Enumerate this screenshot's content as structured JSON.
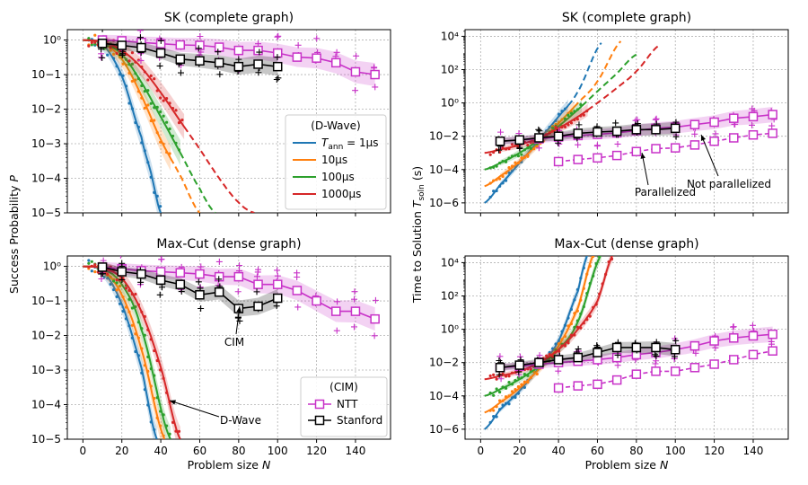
{
  "colors": {
    "t1": "#1f77b4",
    "t10": "#ff7f0e",
    "t100": "#2ca02c",
    "t1000": "#d62728",
    "ntt": "#c832c8",
    "stanford": "#000000",
    "grid": "#b0b0b0"
  },
  "shared": {
    "xlabel": "Problem size N",
    "left_ylabel": "Success Probability P",
    "right_ylabel": "Time to Solution T_soln (s)",
    "x_ticks": [
      "0",
      "20",
      "40",
      "60",
      "80",
      "100",
      "120",
      "140"
    ],
    "left_y_ticks": [
      "10−5",
      "10−4",
      "10−3",
      "10−2",
      "10−1",
      "10⁰"
    ],
    "right_y_ticks": [
      "10−6",
      "10−4",
      "10−2",
      "10⁰",
      "10²",
      "10⁴"
    ]
  },
  "legend_dwave": {
    "title": "(D-Wave)",
    "entries": [
      "T_ann = 1μs",
      "10μs",
      "100μs",
      "1000μs"
    ]
  },
  "legend_cim": {
    "title": "(CIM)",
    "entries": [
      "NTT",
      "Stanford"
    ]
  },
  "annotations": {
    "parallelized": "Parallelized",
    "not_parallelized": "Not parallelized",
    "cim": "CIM",
    "dwave": "D-Wave"
  },
  "chart_data": [
    {
      "id": "sk_p",
      "type": "line",
      "title": "SK (complete graph)",
      "xlabel": "",
      "ylabel": "Success Probability P",
      "yscale": "log",
      "xlim": [
        -8,
        158
      ],
      "ylim_exp": [
        -5,
        0.3
      ],
      "dwave_fits": [
        {
          "name": "T_ann = 1μs",
          "color_key": "t1",
          "solid_end": 40,
          "dash_end": 40,
          "x": [
            0,
            10,
            20,
            30,
            35,
            40
          ],
          "y": [
            1,
            0.75,
            0.09,
            0.0016,
            0.00014,
            1e-05
          ]
        },
        {
          "name": "10μs",
          "color_key": "t10",
          "solid_end": 45,
          "dash_end": 60,
          "x": [
            0,
            10,
            20,
            30,
            40,
            50,
            60
          ],
          "y": [
            1,
            0.82,
            0.28,
            0.025,
            0.0013,
            0.00012,
            1e-05
          ]
        },
        {
          "name": "100μs",
          "color_key": "t100",
          "solid_end": 50,
          "dash_end": 68,
          "x": [
            0,
            10,
            20,
            30,
            40,
            50,
            60,
            68
          ],
          "y": [
            1,
            0.85,
            0.38,
            0.06,
            0.006,
            0.00055,
            5e-05,
            1e-05
          ]
        },
        {
          "name": "1000μs",
          "color_key": "t1000",
          "solid_end": 52,
          "dash_end": 88,
          "x": [
            0,
            10,
            20,
            30,
            40,
            50,
            60,
            70,
            80,
            88
          ],
          "y": [
            1,
            0.88,
            0.5,
            0.16,
            0.03,
            0.0045,
            0.0007,
            0.0001,
            2e-05,
            1e-05
          ]
        }
      ],
      "ntt": {
        "x": [
          10,
          20,
          30,
          40,
          50,
          60,
          70,
          80,
          90,
          100,
          110,
          120,
          130,
          140,
          150
        ],
        "y": [
          1.0,
          0.95,
          0.85,
          0.78,
          0.72,
          0.7,
          0.62,
          0.5,
          0.5,
          0.42,
          0.32,
          0.3,
          0.22,
          0.12,
          0.1
        ]
      },
      "stanford": {
        "x": [
          10,
          20,
          30,
          40,
          50,
          60,
          70,
          80,
          90,
          100
        ],
        "y": [
          0.8,
          0.7,
          0.6,
          0.42,
          0.28,
          0.25,
          0.22,
          0.17,
          0.2,
          0.17
        ]
      }
    },
    {
      "id": "sk_t",
      "type": "line",
      "title": "SK (complete graph)",
      "xlabel": "Problem size N",
      "ylabel": "Time to Solution T_soln (s)",
      "yscale": "log",
      "xlim": [
        -8,
        158
      ],
      "ylim_exp": [
        -6.6,
        4.4
      ],
      "dwave_fits": [
        {
          "name": "T_ann = 1μs",
          "color_key": "t1",
          "solid_end": 45,
          "dash_end": 62,
          "x": [
            2,
            10,
            20,
            30,
            40,
            50,
            62
          ],
          "y": [
            1e-06,
            1.2e-05,
            0.00025,
            0.006,
            0.15,
            5,
            4000
          ]
        },
        {
          "name": "10μs",
          "color_key": "t10",
          "solid_end": 48,
          "dash_end": 72,
          "x": [
            2,
            10,
            20,
            30,
            40,
            50,
            60,
            72
          ],
          "y": [
            1e-05,
            4e-05,
            0.0003,
            0.004,
            0.06,
            1,
            20,
            5000
          ]
        },
        {
          "name": "100μs",
          "color_key": "t100",
          "solid_end": 52,
          "dash_end": 80,
          "x": [
            2,
            10,
            20,
            30,
            40,
            50,
            60,
            70,
            80
          ],
          "y": [
            0.0001,
            0.00025,
            0.001,
            0.006,
            0.04,
            0.4,
            5,
            60,
            800
          ]
        },
        {
          "name": "1000μs",
          "color_key": "t1000",
          "solid_end": 55,
          "dash_end": 92,
          "x": [
            2,
            10,
            20,
            30,
            40,
            50,
            60,
            70,
            80,
            92
          ],
          "y": [
            0.001,
            0.0016,
            0.003,
            0.008,
            0.03,
            0.15,
            1,
            8,
            80,
            3000
          ]
        }
      ],
      "ntt_parallel": {
        "x": [
          40,
          50,
          60,
          70,
          80,
          90,
          100,
          110,
          120,
          130,
          140,
          150
        ],
        "y": [
          0.0003,
          0.0004,
          0.0005,
          0.0007,
          0.0012,
          0.0018,
          0.002,
          0.003,
          0.005,
          0.008,
          0.012,
          0.015
        ]
      },
      "ntt": {
        "x": [
          10,
          20,
          30,
          40,
          50,
          60,
          70,
          80,
          90,
          100,
          110,
          120,
          130,
          140,
          150
        ],
        "y": [
          0.005,
          0.006,
          0.007,
          0.009,
          0.011,
          0.013,
          0.016,
          0.022,
          0.03,
          0.035,
          0.05,
          0.07,
          0.12,
          0.15,
          0.2
        ]
      },
      "stanford": {
        "x": [
          10,
          20,
          30,
          40,
          50,
          60,
          70,
          80,
          90,
          100
        ],
        "y": [
          0.005,
          0.006,
          0.008,
          0.01,
          0.015,
          0.018,
          0.02,
          0.025,
          0.025,
          0.03
        ]
      }
    },
    {
      "id": "mc_p",
      "type": "line",
      "title": "Max-Cut (dense graph)",
      "xlabel": "Problem size N",
      "ylabel": "Success Probability P",
      "yscale": "log",
      "xlim": [
        -8,
        158
      ],
      "ylim_exp": [
        -5,
        0.3
      ],
      "dwave_fits": [
        {
          "name": "T_ann = 1μs",
          "color_key": "t1",
          "solid_end": 38,
          "dash_end": 38,
          "x": [
            0,
            10,
            20,
            30,
            38
          ],
          "y": [
            1,
            0.75,
            0.08,
            0.0012,
            1e-05
          ]
        },
        {
          "name": "10μs",
          "color_key": "t10",
          "solid_end": 42,
          "dash_end": 42,
          "x": [
            0,
            10,
            20,
            30,
            42
          ],
          "y": [
            1,
            0.8,
            0.15,
            0.004,
            1e-05
          ]
        },
        {
          "name": "100μs",
          "color_key": "t100",
          "solid_end": 45,
          "dash_end": 45,
          "x": [
            0,
            10,
            20,
            30,
            45
          ],
          "y": [
            1,
            0.85,
            0.3,
            0.015,
            1e-05
          ]
        },
        {
          "name": "1000μs",
          "color_key": "t1000",
          "solid_end": 50,
          "dash_end": 50,
          "x": [
            0,
            10,
            20,
            30,
            40,
            50
          ],
          "y": [
            1,
            0.88,
            0.45,
            0.05,
            0.0012,
            1e-05
          ]
        }
      ],
      "ntt": {
        "x": [
          10,
          20,
          30,
          40,
          50,
          60,
          70,
          80,
          90,
          100,
          110,
          120,
          130,
          140,
          150
        ],
        "y": [
          0.95,
          0.85,
          0.75,
          0.7,
          0.65,
          0.6,
          0.5,
          0.5,
          0.3,
          0.3,
          0.2,
          0.1,
          0.05,
          0.05,
          0.03
        ]
      },
      "stanford": {
        "x": [
          10,
          20,
          30,
          40,
          50,
          60,
          70,
          80,
          90,
          100
        ],
        "y": [
          0.95,
          0.7,
          0.6,
          0.4,
          0.3,
          0.15,
          0.18,
          0.06,
          0.07,
          0.12
        ]
      }
    },
    {
      "id": "mc_t",
      "type": "line",
      "title": "Max-Cut (dense graph)",
      "xlabel": "Problem size N",
      "ylabel": "Time to Solution T_soln (s)",
      "yscale": "log",
      "xlim": [
        -8,
        158
      ],
      "ylim_exp": [
        -6.6,
        4.4
      ],
      "dwave_fits": [
        {
          "name": "T_ann = 1μs",
          "color_key": "t1",
          "solid_end": 55,
          "dash_end": 55,
          "x": [
            2,
            10,
            20,
            30,
            40,
            50,
            55
          ],
          "y": [
            1e-06,
            1.5e-05,
            0.0002,
            0.005,
            0.2,
            200,
            30000
          ]
        },
        {
          "name": "10μs",
          "color_key": "t10",
          "solid_end": 58,
          "dash_end": 58,
          "x": [
            2,
            10,
            20,
            30,
            40,
            50,
            58
          ],
          "y": [
            1e-05,
            4e-05,
            0.0003,
            0.004,
            0.1,
            20,
            30000
          ]
        },
        {
          "name": "100μs",
          "color_key": "t100",
          "solid_end": 62,
          "dash_end": 62,
          "x": [
            2,
            10,
            20,
            30,
            40,
            50,
            62
          ],
          "y": [
            0.0001,
            0.00025,
            0.001,
            0.006,
            0.06,
            3,
            30000
          ]
        },
        {
          "name": "1000μs",
          "color_key": "t1000",
          "solid_end": 68,
          "dash_end": 68,
          "x": [
            2,
            10,
            20,
            30,
            40,
            50,
            60,
            68
          ],
          "y": [
            0.001,
            0.0016,
            0.003,
            0.01,
            0.06,
            1,
            50,
            30000
          ]
        }
      ],
      "ntt_parallel": {
        "x": [
          40,
          50,
          60,
          70,
          80,
          90,
          100,
          110,
          120,
          130,
          140,
          150
        ],
        "y": [
          0.0003,
          0.0004,
          0.0005,
          0.0009,
          0.002,
          0.003,
          0.003,
          0.005,
          0.008,
          0.015,
          0.03,
          0.05
        ]
      },
      "ntt": {
        "x": [
          10,
          20,
          30,
          40,
          50,
          60,
          70,
          80,
          90,
          100,
          110,
          120,
          130,
          140,
          150
        ],
        "y": [
          0.005,
          0.006,
          0.008,
          0.01,
          0.012,
          0.015,
          0.02,
          0.03,
          0.04,
          0.06,
          0.1,
          0.2,
          0.3,
          0.4,
          0.5
        ]
      },
      "stanford": {
        "x": [
          10,
          20,
          30,
          40,
          50,
          60,
          70,
          80,
          90,
          100
        ],
        "y": [
          0.005,
          0.007,
          0.01,
          0.015,
          0.02,
          0.04,
          0.08,
          0.08,
          0.08,
          0.06
        ]
      }
    }
  ]
}
